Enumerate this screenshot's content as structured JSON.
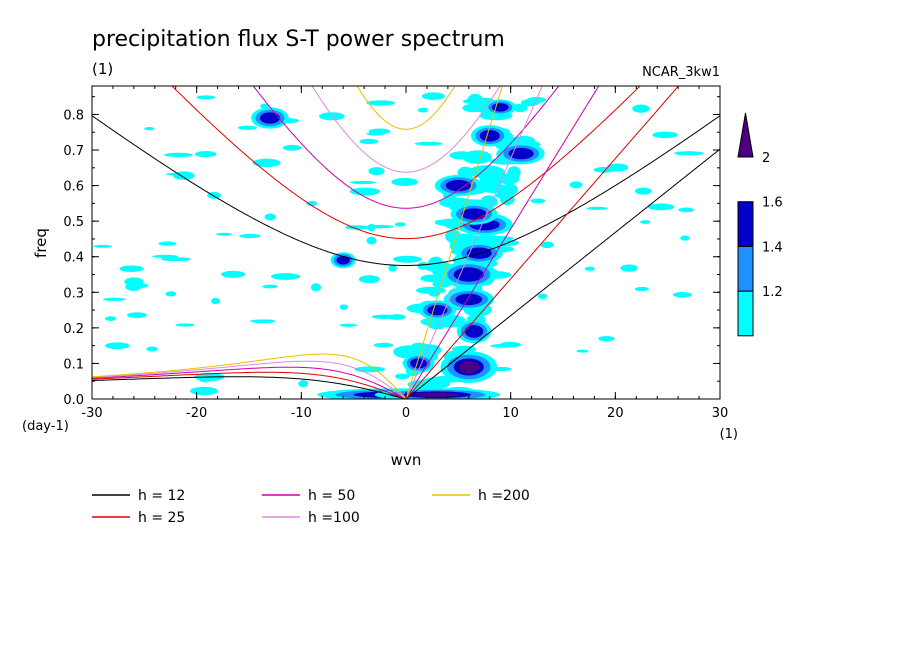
{
  "chart_data": {
    "type": "heatmap",
    "title": "precipitation flux S-T power spectrum",
    "subtitle_left": "(1)",
    "subtitle_right": "NCAR_3kw1",
    "xlabel": "wvn",
    "ylabel": "freq",
    "x_unit": "(1)",
    "y_unit": "(day-1)",
    "xlim": [
      -30,
      30
    ],
    "ylim": [
      0,
      0.88
    ],
    "x_ticks": [
      -30,
      -20,
      -10,
      0,
      10,
      20,
      30
    ],
    "x_tick_labels": [
      "-30",
      "-20",
      "-10",
      "0",
      "10",
      "20",
      "30"
    ],
    "y_ticks": [
      0,
      0.1,
      0.2,
      0.3,
      0.4,
      0.5,
      0.6,
      0.7,
      0.8
    ],
    "y_tick_labels": [
      "0.0",
      "0.1",
      "0.2",
      "0.3",
      "0.4",
      "0.5",
      "0.6",
      "0.7",
      "0.8"
    ],
    "colorbar": {
      "levels": [
        1.2,
        1.4,
        1.6,
        2
      ],
      "level_labels": [
        "1.2",
        "1.4",
        "1.6",
        "2"
      ],
      "colors": [
        "#00ffff",
        "#1e90ff",
        "#0000c8",
        "#4b0082"
      ]
    },
    "dispersion_curves": [
      {
        "label": "h = 12",
        "h": 12,
        "color": "#000000"
      },
      {
        "label": "h = 25",
        "h": 25,
        "color": "#dd0000"
      },
      {
        "label": "h = 50",
        "h": 50,
        "color": "#cc00aa"
      },
      {
        "label": "h =100",
        "h": 100,
        "color": "#dd88dd"
      },
      {
        "label": "h =200",
        "h": 200,
        "color": "#e6c000"
      }
    ],
    "contour_patches": [
      {
        "x": 6.0,
        "y": 0.09,
        "rx": 1.8,
        "ry": 0.03,
        "level": 2
      },
      {
        "x": 6.5,
        "y": 0.19,
        "rx": 1.1,
        "ry": 0.022,
        "level": 1.6
      },
      {
        "x": 6.0,
        "y": 0.28,
        "rx": 1.6,
        "ry": 0.02,
        "level": 1.6
      },
      {
        "x": 6.0,
        "y": 0.35,
        "rx": 1.8,
        "ry": 0.025,
        "level": 1.6
      },
      {
        "x": 7.0,
        "y": 0.41,
        "rx": 1.5,
        "ry": 0.02,
        "level": 1.6
      },
      {
        "x": 7.5,
        "y": 0.49,
        "rx": 1.8,
        "ry": 0.02,
        "level": 1.6
      },
      {
        "x": 6.5,
        "y": 0.52,
        "rx": 1.5,
        "ry": 0.02,
        "level": 1.6
      },
      {
        "x": 11.0,
        "y": 0.69,
        "rx": 1.5,
        "ry": 0.02,
        "level": 1.6
      },
      {
        "x": 8.0,
        "y": 0.74,
        "rx": 1.2,
        "ry": 0.02,
        "level": 1.6
      },
      {
        "x": 9.0,
        "y": 0.82,
        "rx": 1.0,
        "ry": 0.015,
        "level": 1.6
      },
      {
        "x": 1.2,
        "y": 0.1,
        "rx": 1.0,
        "ry": 0.018,
        "level": 1.6
      },
      {
        "x": -1.0,
        "y": 0.012,
        "rx": 5.0,
        "ry": 0.012,
        "level": 1.6
      },
      {
        "x": 3.0,
        "y": 0.012,
        "rx": 4.0,
        "ry": 0.012,
        "level": 2
      },
      {
        "x": 3.0,
        "y": 0.25,
        "rx": 1.2,
        "ry": 0.018,
        "level": 1.6
      },
      {
        "x": 5.0,
        "y": 0.6,
        "rx": 1.5,
        "ry": 0.02,
        "level": 1.6
      },
      {
        "x": -13.0,
        "y": 0.79,
        "rx": 1.2,
        "ry": 0.02,
        "level": 1.6
      },
      {
        "x": -6.0,
        "y": 0.39,
        "rx": 0.8,
        "ry": 0.015,
        "level": 1.6
      }
    ]
  }
}
